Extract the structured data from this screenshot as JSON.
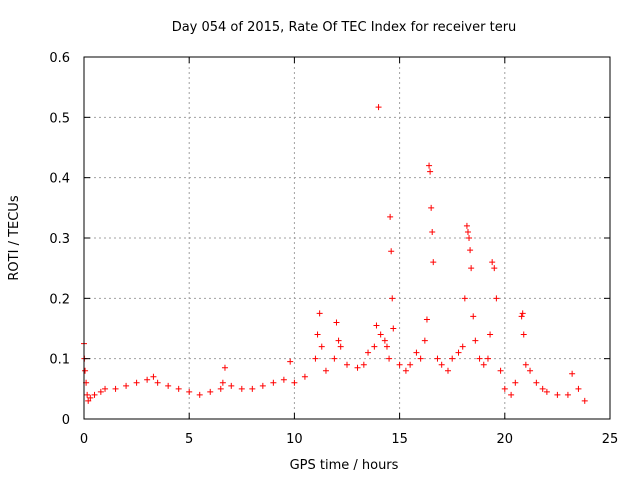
{
  "chart_data": {
    "type": "scatter",
    "title": "Day 054 of 2015, Rate Of TEC Index for receiver teru",
    "xlabel": "GPS time / hours",
    "ylabel": "ROTI / TECUs",
    "xlim": [
      0,
      25
    ],
    "ylim": [
      0,
      0.6
    ],
    "xticks": [
      0,
      5,
      10,
      15,
      20,
      25
    ],
    "yticks": [
      0,
      0.1,
      0.2,
      0.3,
      0.4,
      0.5,
      0.6
    ],
    "xtick_labels": [
      "0",
      "5",
      "10",
      "15",
      "20",
      "25"
    ],
    "ytick_labels": [
      "0",
      "0.1",
      "0.2",
      "0.3",
      "0.4",
      "0.5",
      "0.6"
    ],
    "grid": true,
    "marker": "+",
    "color": "#ff0000",
    "series": [
      {
        "name": "ROTI",
        "x": [
          0.0,
          0.02,
          0.05,
          0.1,
          0.15,
          0.2,
          0.3,
          0.5,
          0.8,
          1.0,
          1.5,
          2.0,
          2.5,
          3.0,
          3.3,
          3.5,
          4.0,
          4.5,
          5.0,
          5.5,
          6.0,
          6.5,
          6.6,
          6.7,
          7.0,
          7.5,
          8.0,
          8.5,
          9.0,
          9.5,
          9.8,
          10.0,
          10.5,
          11.0,
          11.1,
          11.2,
          11.3,
          11.5,
          11.9,
          12.0,
          12.1,
          12.2,
          12.5,
          13.0,
          13.3,
          13.5,
          13.8,
          13.9,
          14.0,
          14.1,
          14.3,
          14.4,
          14.5,
          14.55,
          14.6,
          14.65,
          14.7,
          15.0,
          15.3,
          15.5,
          15.8,
          16.0,
          16.2,
          16.3,
          16.4,
          16.45,
          16.5,
          16.55,
          16.6,
          16.8,
          17.0,
          17.3,
          17.5,
          17.8,
          18.0,
          18.1,
          18.2,
          18.25,
          18.3,
          18.35,
          18.4,
          18.5,
          18.6,
          18.8,
          19.0,
          19.2,
          19.3,
          19.4,
          19.5,
          19.6,
          19.8,
          20.0,
          20.3,
          20.5,
          20.8,
          20.85,
          20.9,
          21.0,
          21.2,
          21.5,
          21.8,
          22.0,
          22.5,
          23.0,
          23.2,
          23.5,
          23.8
        ],
        "y": [
          0.125,
          0.1,
          0.08,
          0.06,
          0.04,
          0.03,
          0.035,
          0.04,
          0.045,
          0.05,
          0.05,
          0.055,
          0.06,
          0.065,
          0.07,
          0.06,
          0.055,
          0.05,
          0.045,
          0.04,
          0.045,
          0.05,
          0.06,
          0.085,
          0.055,
          0.05,
          0.05,
          0.055,
          0.06,
          0.065,
          0.095,
          0.06,
          0.07,
          0.1,
          0.14,
          0.175,
          0.12,
          0.08,
          0.1,
          0.16,
          0.13,
          0.12,
          0.09,
          0.085,
          0.09,
          0.11,
          0.12,
          0.155,
          0.517,
          0.14,
          0.13,
          0.12,
          0.1,
          0.335,
          0.278,
          0.2,
          0.15,
          0.09,
          0.08,
          0.09,
          0.11,
          0.1,
          0.13,
          0.165,
          0.42,
          0.41,
          0.35,
          0.31,
          0.26,
          0.1,
          0.09,
          0.08,
          0.1,
          0.11,
          0.12,
          0.2,
          0.32,
          0.31,
          0.3,
          0.28,
          0.25,
          0.17,
          0.13,
          0.1,
          0.09,
          0.1,
          0.14,
          0.26,
          0.25,
          0.2,
          0.08,
          0.05,
          0.04,
          0.06,
          0.17,
          0.175,
          0.14,
          0.09,
          0.08,
          0.06,
          0.05,
          0.045,
          0.04,
          0.04,
          0.075,
          0.05,
          0.03
        ]
      }
    ]
  }
}
